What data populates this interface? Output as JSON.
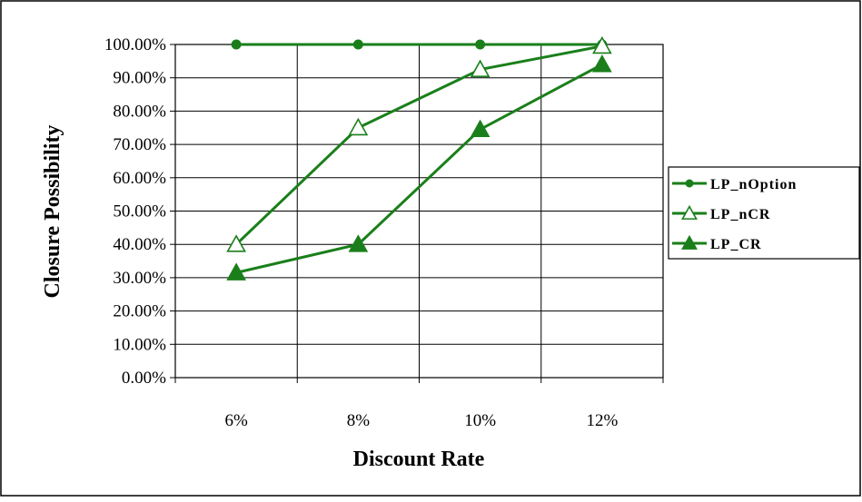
{
  "colors": {
    "series_line": "#1a7f1a",
    "grid": "#000000",
    "frame": "#000000",
    "background": "#ffffff"
  },
  "chart_data": {
    "type": "line",
    "title": "",
    "xlabel": "Discount Rate",
    "ylabel": "Closure Possibility",
    "categories": [
      "6%",
      "8%",
      "10%",
      "12%"
    ],
    "ylim": [
      0,
      100
    ],
    "yticks": [
      "0.00%",
      "10.00%",
      "20.00%",
      "30.00%",
      "40.00%",
      "50.00%",
      "60.00%",
      "70.00%",
      "80.00%",
      "90.00%",
      "100.00%"
    ],
    "grid": true,
    "legend_position": "right",
    "series": [
      {
        "name": "LP_nOption",
        "marker": "filled-circle",
        "values": [
          100,
          100,
          100,
          100
        ]
      },
      {
        "name": "LP_nCR",
        "marker": "open-triangle",
        "values": [
          40,
          75,
          92.5,
          99.5
        ]
      },
      {
        "name": "LP_CR",
        "marker": "filled-triangle",
        "values": [
          31.5,
          40,
          74.5,
          94
        ]
      }
    ]
  }
}
